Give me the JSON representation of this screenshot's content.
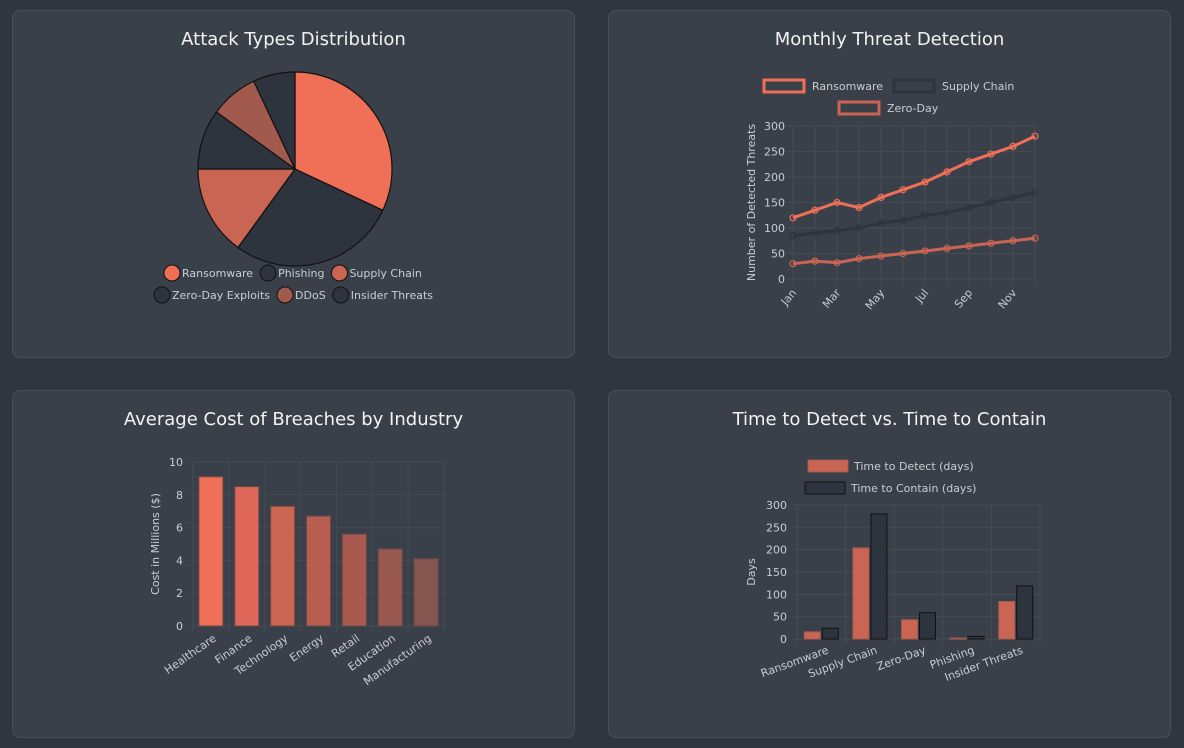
{
  "colors": {
    "ransomware": "#f07057",
    "dark": "#2e343d",
    "supply": "#c96552",
    "ddos": "#a35a4e",
    "grid": "#454b54"
  },
  "chart_data": [
    {
      "type": "pie",
      "title": "Attack Types Distribution",
      "categories": [
        "Ransomware",
        "Phishing",
        "Supply Chain",
        "Zero-Day Exploits",
        "DDoS",
        "Insider Threats"
      ],
      "values": [
        32,
        28,
        15,
        10,
        8,
        7
      ],
      "colors": [
        "#f07057",
        "#2e343d",
        "#c96552",
        "#2e343d",
        "#a35a4e",
        "#2e343d"
      ],
      "legend": "bottom"
    },
    {
      "type": "line",
      "title": "Monthly Threat Detection",
      "categories": [
        "Jan",
        "Feb",
        "Mar",
        "Apr",
        "May",
        "Jun",
        "Jul",
        "Aug",
        "Sep",
        "Oct",
        "Nov",
        "Dec"
      ],
      "x_tick_labels": [
        "Jan",
        "Mar",
        "May",
        "Jul",
        "Sep",
        "Nov"
      ],
      "ylabel": "Number of Detected Threats",
      "ylim": [
        0,
        300
      ],
      "yticks": [
        0,
        50,
        100,
        150,
        200,
        250,
        300
      ],
      "legend": "top",
      "grid": true,
      "series": [
        {
          "name": "Ransomware",
          "color": "#f07057",
          "values": [
            120,
            135,
            150,
            140,
            160,
            175,
            190,
            210,
            230,
            245,
            260,
            280
          ]
        },
        {
          "name": "Supply Chain",
          "color": "#2e343d",
          "values": [
            85,
            90,
            95,
            100,
            110,
            115,
            125,
            130,
            140,
            150,
            160,
            170
          ]
        },
        {
          "name": "Zero-Day",
          "color": "#c96552",
          "values": [
            30,
            35,
            32,
            40,
            45,
            50,
            55,
            60,
            65,
            70,
            75,
            80
          ]
        }
      ]
    },
    {
      "type": "bar",
      "title": "Average Cost of Breaches by Industry",
      "categories": [
        "Healthcare",
        "Finance",
        "Technology",
        "Energy",
        "Retail",
        "Education",
        "Manufacturing"
      ],
      "values": [
        9.1,
        8.5,
        7.3,
        6.7,
        5.6,
        4.7,
        4.1
      ],
      "colors": [
        "#f07057",
        "#e0685a",
        "#cc6552",
        "#b85e50",
        "#a95a4e",
        "#985850",
        "#85554f"
      ],
      "ylabel": "Cost in Millions ($)",
      "ylim": [
        0,
        10
      ],
      "yticks": [
        0,
        2,
        4,
        6,
        8,
        10
      ],
      "grid": true
    },
    {
      "type": "bar",
      "title": "Time to Detect vs. Time to Contain",
      "categories": [
        "Ransomware",
        "Supply Chain",
        "Zero-Day",
        "Phishing",
        "Insider Threats"
      ],
      "ylabel": "Days",
      "ylim": [
        0,
        300
      ],
      "yticks": [
        0,
        50,
        100,
        150,
        200,
        250,
        300
      ],
      "legend": "top",
      "grid": true,
      "series": [
        {
          "name": "Time to Detect (days)",
          "color": "#c96552",
          "values": [
            16,
            204,
            43,
            2,
            84
          ]
        },
        {
          "name": "Time to Contain (days)",
          "color": "#2e343d",
          "values": [
            24,
            280,
            59,
            6,
            119
          ]
        }
      ]
    }
  ]
}
